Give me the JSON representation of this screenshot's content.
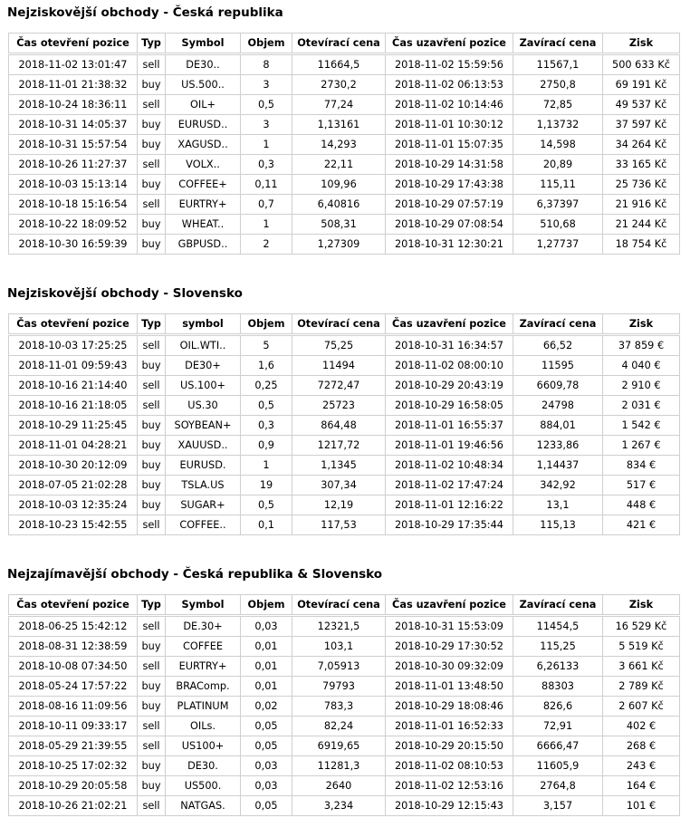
{
  "tables": [
    {
      "title": "Nejziskovější obchody - Česká republika",
      "headers": [
        "Čas otevření pozice",
        "Typ",
        "Symbol",
        "Objem",
        "Otevírací cena",
        "Čas uzavření pozice",
        "Zavírací cena",
        "Zisk"
      ],
      "rows": [
        [
          "2018-11-02 13:01:47",
          "sell",
          "DE30..",
          "8",
          "11664,5",
          "2018-11-02 15:59:56",
          "11567,1",
          "500 633 Kč"
        ],
        [
          "2018-11-01 21:38:32",
          "buy",
          "US.500..",
          "3",
          "2730,2",
          "2018-11-02 06:13:53",
          "2750,8",
          "69 191 Kč"
        ],
        [
          "2018-10-24 18:36:11",
          "sell",
          "OIL+",
          "0,5",
          "77,24",
          "2018-11-02 10:14:46",
          "72,85",
          "49 537 Kč"
        ],
        [
          "2018-10-31 14:05:37",
          "buy",
          "EURUSD..",
          "3",
          "1,13161",
          "2018-11-01 10:30:12",
          "1,13732",
          "37 597 Kč"
        ],
        [
          "2018-10-31 15:57:54",
          "buy",
          "XAGUSD..",
          "1",
          "14,293",
          "2018-11-01 15:07:35",
          "14,598",
          "34 264 Kč"
        ],
        [
          "2018-10-26 11:27:37",
          "sell",
          "VOLX..",
          "0,3",
          "22,11",
          "2018-10-29 14:31:58",
          "20,89",
          "33 165 Kč"
        ],
        [
          "2018-10-03 15:13:14",
          "buy",
          "COFFEE+",
          "0,11",
          "109,96",
          "2018-10-29 17:43:38",
          "115,11",
          "25 736 Kč"
        ],
        [
          "2018-10-18 15:16:54",
          "sell",
          "EURTRY+",
          "0,7",
          "6,40816",
          "2018-10-29 07:57:19",
          "6,37397",
          "21 916 Kč"
        ],
        [
          "2018-10-22 18:09:52",
          "buy",
          "WHEAT..",
          "1",
          "508,31",
          "2018-10-29 07:08:54",
          "510,68",
          "21 244 Kč"
        ],
        [
          "2018-10-30 16:59:39",
          "buy",
          "GBPUSD..",
          "2",
          "1,27309",
          "2018-10-31 12:30:21",
          "1,27737",
          "18 754 Kč"
        ]
      ]
    },
    {
      "title": "Nejziskovější obchody - Slovensko",
      "headers": [
        "Čas otevření pozice",
        "Typ",
        "symbol",
        "Objem",
        "Otevírací cena",
        "Čas uzavření pozice",
        "Zavírací cena",
        "Zisk"
      ],
      "rows": [
        [
          "2018-10-03 17:25:25",
          "sell",
          "OIL.WTI..",
          "5",
          "75,25",
          "2018-10-31 16:34:57",
          "66,52",
          "37 859 €"
        ],
        [
          "2018-11-01 09:59:43",
          "buy",
          "DE30+",
          "1,6",
          "11494",
          "2018-11-02 08:00:10",
          "11595",
          "4 040 €"
        ],
        [
          "2018-10-16 21:14:40",
          "sell",
          "US.100+",
          "0,25",
          "7272,47",
          "2018-10-29 20:43:19",
          "6609,78",
          "2 910 €"
        ],
        [
          "2018-10-16 21:18:05",
          "sell",
          "US.30",
          "0,5",
          "25723",
          "2018-10-29 16:58:05",
          "24798",
          "2 031 €"
        ],
        [
          "2018-10-29 11:25:45",
          "buy",
          "SOYBEAN+",
          "0,3",
          "864,48",
          "2018-11-01 16:55:37",
          "884,01",
          "1 542 €"
        ],
        [
          "2018-11-01 04:28:21",
          "buy",
          "XAUUSD..",
          "0,9",
          "1217,72",
          "2018-11-01 19:46:56",
          "1233,86",
          "1 267 €"
        ],
        [
          "2018-10-30 20:12:09",
          "buy",
          "EURUSD.",
          "1",
          "1,1345",
          "2018-11-02 10:48:34",
          "1,14437",
          "834 €"
        ],
        [
          "2018-07-05 21:02:28",
          "buy",
          "TSLA.US",
          "19",
          "307,34",
          "2018-11-02 17:47:24",
          "342,92",
          "517 €"
        ],
        [
          "2018-10-03 12:35:24",
          "buy",
          "SUGAR+",
          "0,5",
          "12,19",
          "2018-11-01 12:16:22",
          "13,1",
          "448 €"
        ],
        [
          "2018-10-23 15:42:55",
          "sell",
          "COFFEE..",
          "0,1",
          "117,53",
          "2018-10-29 17:35:44",
          "115,13",
          "421 €"
        ]
      ]
    },
    {
      "title": "Nejzajímavější obchody - Česká republika & Slovensko",
      "headers": [
        "Čas otevření pozice",
        "Typ",
        "Symbol",
        "Objem",
        "Otevírací cena",
        "Čas uzavření pozice",
        "Zavírací cena",
        "Zisk"
      ],
      "rows": [
        [
          "2018-06-25 15:42:12",
          "sell",
          "DE.30+",
          "0,03",
          "12321,5",
          "2018-10-31 15:53:09",
          "11454,5",
          "16 529 Kč"
        ],
        [
          "2018-08-31 12:38:59",
          "buy",
          "COFFEE",
          "0,01",
          "103,1",
          "2018-10-29 17:30:52",
          "115,25",
          "5 519 Kč"
        ],
        [
          "2018-10-08 07:34:50",
          "sell",
          "EURTRY+",
          "0,01",
          "7,05913",
          "2018-10-30 09:32:09",
          "6,26133",
          "3 661 Kč"
        ],
        [
          "2018-05-24 17:57:22",
          "buy",
          "BRAComp.",
          "0,01",
          "79793",
          "2018-11-01 13:48:50",
          "88303",
          "2 789 Kč"
        ],
        [
          "2018-08-16 11:09:56",
          "buy",
          "PLATINUM",
          "0,02",
          "783,3",
          "2018-10-29 18:08:46",
          "826,6",
          "2 607 Kč"
        ],
        [
          "2018-10-11 09:33:17",
          "sell",
          "OILs.",
          "0,05",
          "82,24",
          "2018-11-01 16:52:33",
          "72,91",
          "402 €"
        ],
        [
          "2018-05-29 21:39:55",
          "sell",
          "US100+",
          "0,05",
          "6919,65",
          "2018-10-29 20:15:50",
          "6666,47",
          "268 €"
        ],
        [
          "2018-10-25 17:02:32",
          "buy",
          "DE30.",
          "0,03",
          "11281,3",
          "2018-11-02 08:10:53",
          "11605,9",
          "243 €"
        ],
        [
          "2018-10-29 20:05:58",
          "buy",
          "US500.",
          "0,03",
          "2640",
          "2018-11-02 12:53:16",
          "2764,8",
          "164 €"
        ],
        [
          "2018-10-26 21:02:21",
          "sell",
          "NATGAS.",
          "0,05",
          "3,234",
          "2018-10-29 12:15:43",
          "3,157",
          "101 €"
        ]
      ]
    }
  ]
}
